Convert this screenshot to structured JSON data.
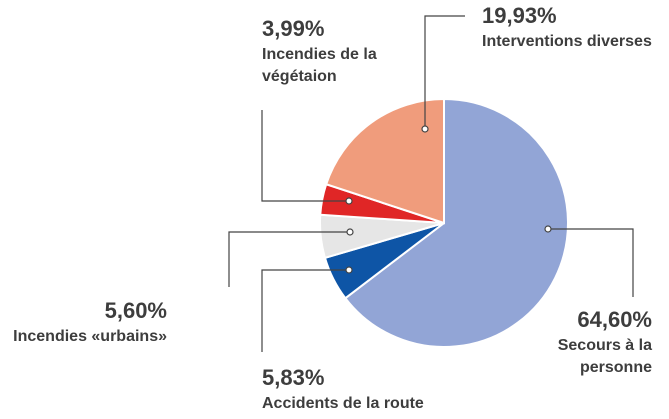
{
  "chart_data": {
    "type": "pie",
    "title": "",
    "slices": [
      {
        "value": 64.6,
        "value_label": "64,60%",
        "label_lines": [
          "Secours à la",
          "personne"
        ],
        "color": "#92a5d6"
      },
      {
        "value": 5.83,
        "value_label": "5,83%",
        "label_lines": [
          "Accidents de la route"
        ],
        "color": "#0e55a6"
      },
      {
        "value": 5.6,
        "value_label": "5,60%",
        "label_lines": [
          "Incendies «urbains»"
        ],
        "color": "#e6e6e6"
      },
      {
        "value": 3.99,
        "value_label": "3,99%",
        "label_lines": [
          "Incendies de la",
          "végétaion"
        ],
        "color": "#e02626"
      },
      {
        "value": 19.93,
        "value_label": "19,93%",
        "label_lines": [
          "Interventions diverses"
        ],
        "color": "#f09c7c"
      }
    ]
  }
}
